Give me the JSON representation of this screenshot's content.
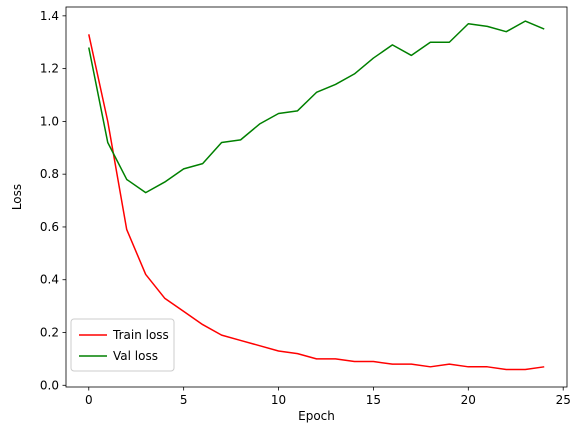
{
  "chart_data": {
    "type": "line",
    "title": "",
    "xlabel": "Epoch",
    "ylabel": "Loss",
    "xlim": [
      -1.2,
      25.2
    ],
    "ylim": [
      -0.0065,
      1.4335
    ],
    "x_ticks": [
      0,
      5,
      10,
      15,
      20,
      25
    ],
    "x_tick_labels": [
      "0",
      "5",
      "10",
      "15",
      "20",
      "25"
    ],
    "y_ticks": [
      0.0,
      0.2,
      0.4,
      0.6,
      0.8,
      1.0,
      1.2,
      1.4
    ],
    "y_tick_labels": [
      "0.0",
      "0.2",
      "0.4",
      "0.6",
      "0.8",
      "1.0",
      "1.2",
      "1.4"
    ],
    "grid": false,
    "legend_position": "lower-left",
    "x": [
      0,
      1,
      2,
      3,
      4,
      5,
      6,
      7,
      8,
      9,
      10,
      11,
      12,
      13,
      14,
      15,
      16,
      17,
      18,
      19,
      20,
      21,
      22,
      23,
      24
    ],
    "series": [
      {
        "name": "Train loss",
        "color": "#ff0000",
        "values": [
          1.33,
          1.0,
          0.59,
          0.42,
          0.33,
          0.28,
          0.23,
          0.19,
          0.17,
          0.15,
          0.13,
          0.12,
          0.1,
          0.1,
          0.09,
          0.09,
          0.08,
          0.08,
          0.07,
          0.08,
          0.07,
          0.07,
          0.06,
          0.06,
          0.07
        ]
      },
      {
        "name": "Val loss",
        "color": "#008000",
        "values": [
          1.28,
          0.92,
          0.78,
          0.73,
          0.77,
          0.82,
          0.84,
          0.92,
          0.93,
          0.99,
          1.03,
          1.04,
          1.11,
          1.14,
          1.18,
          1.24,
          1.29,
          1.25,
          1.3,
          1.3,
          1.37,
          1.36,
          1.34,
          1.38,
          1.35
        ]
      }
    ]
  }
}
